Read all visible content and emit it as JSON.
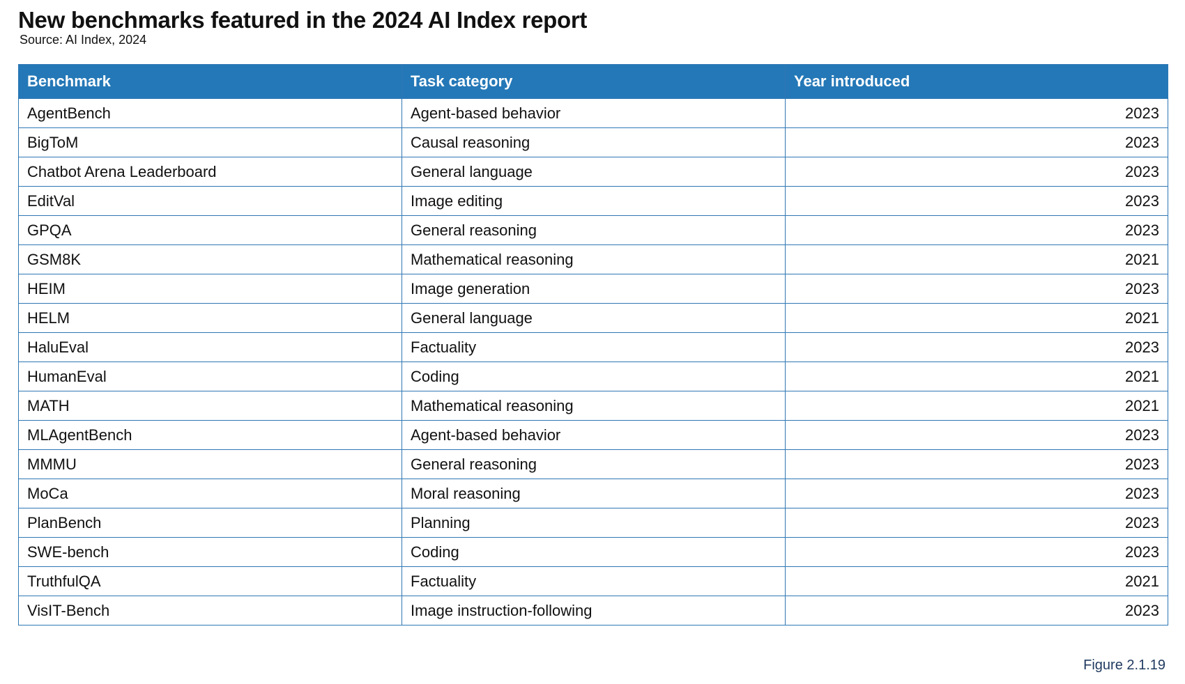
{
  "title": "New benchmarks featured in the 2024 AI Index report",
  "source": "Source: AI Index, 2024",
  "colors": {
    "header_bg": "#2478b7",
    "header_text": "#ffffff",
    "border": "#2f77b4",
    "figure_label": "#1f3a5f"
  },
  "table": {
    "headers": [
      "Benchmark",
      "Task category",
      "Year introduced"
    ],
    "rows": [
      {
        "benchmark": "AgentBench",
        "category": "Agent-based behavior",
        "year": "2023"
      },
      {
        "benchmark": "BigToM",
        "category": "Causal reasoning",
        "year": "2023"
      },
      {
        "benchmark": "Chatbot Arena Leaderboard",
        "category": "General language",
        "year": "2023"
      },
      {
        "benchmark": "EditVal",
        "category": "Image editing",
        "year": "2023"
      },
      {
        "benchmark": "GPQA",
        "category": "General reasoning",
        "year": "2023"
      },
      {
        "benchmark": "GSM8K",
        "category": "Mathematical reasoning",
        "year": "2021"
      },
      {
        "benchmark": "HEIM",
        "category": "Image generation",
        "year": "2023"
      },
      {
        "benchmark": "HELM",
        "category": "General language",
        "year": "2021"
      },
      {
        "benchmark": "HaluEval",
        "category": "Factuality",
        "year": "2023"
      },
      {
        "benchmark": "HumanEval",
        "category": "Coding",
        "year": "2021"
      },
      {
        "benchmark": "MATH",
        "category": "Mathematical reasoning",
        "year": "2021"
      },
      {
        "benchmark": "MLAgentBench",
        "category": "Agent-based behavior",
        "year": "2023"
      },
      {
        "benchmark": "MMMU",
        "category": "General reasoning",
        "year": "2023"
      },
      {
        "benchmark": "MoCa",
        "category": "Moral reasoning",
        "year": "2023"
      },
      {
        "benchmark": "PlanBench",
        "category": "Planning",
        "year": "2023"
      },
      {
        "benchmark": "SWE-bench",
        "category": "Coding",
        "year": "2023"
      },
      {
        "benchmark": "TruthfulQA",
        "category": "Factuality",
        "year": "2021"
      },
      {
        "benchmark": "VisIT-Bench",
        "category": "Image instruction-following",
        "year": "2023"
      }
    ]
  },
  "figure_label": "Figure 2.1.19"
}
